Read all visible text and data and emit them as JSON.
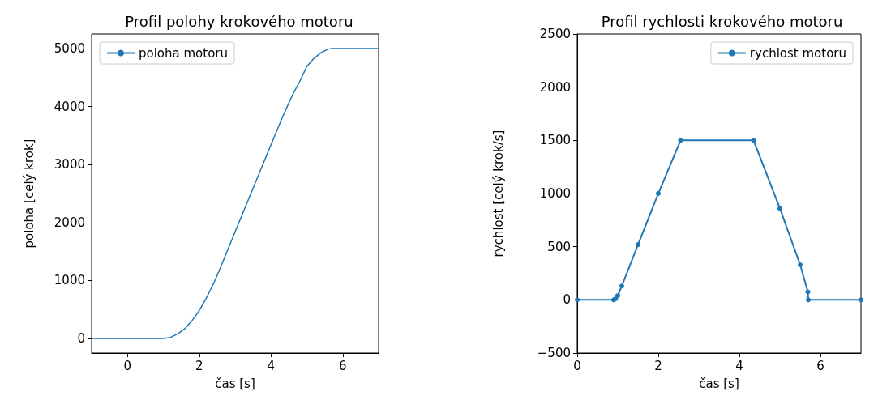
{
  "chart_data": [
    {
      "type": "line",
      "title": "Profil polohy krokového motoru",
      "xlabel": "čas [s]",
      "ylabel": "poloha [celý krok]",
      "xlim": [
        -1,
        7
      ],
      "xticks": [
        0,
        2,
        4,
        6
      ],
      "ylim": [
        -250,
        5250
      ],
      "yticks": [
        0,
        1000,
        2000,
        3000,
        4000,
        5000
      ],
      "grid": false,
      "legend": "top left",
      "line_style": "solid",
      "series": [
        {
          "name": "poloha motoru",
          "color": "#1f77b4",
          "x": [
            -1,
            0,
            1,
            1.2,
            1.4,
            1.6,
            1.8,
            2.0,
            2.2,
            2.4,
            2.55,
            3,
            3.5,
            4,
            4.35,
            4.6,
            4.8,
            5.0,
            5.2,
            5.4,
            5.6,
            5.7,
            6,
            7
          ],
          "values": [
            0,
            0,
            0,
            20,
            80,
            170,
            310,
            480,
            700,
            950,
            1160,
            1840,
            2590,
            3340,
            3860,
            4200,
            4430,
            4690,
            4830,
            4930,
            4990,
            5000,
            5000,
            5000
          ]
        }
      ]
    },
    {
      "type": "line",
      "title": "Profil rychlosti krokového motoru",
      "xlabel": "čas [s]",
      "ylabel": "rychlost [celý krok/s]",
      "xlim": [
        0,
        7
      ],
      "xticks": [
        0,
        2,
        4,
        6
      ],
      "ylim": [
        -500,
        2500
      ],
      "yticks": [
        {
          "value": -500,
          "label": "−500"
        },
        0,
        500,
        1000,
        1500,
        2000,
        2500
      ],
      "grid": false,
      "legend": "top right",
      "marker": "circle",
      "line_style": "solid",
      "series": [
        {
          "name": "rychlost motoru",
          "color": "#1f77b4",
          "x": [
            0,
            0.9,
            0.95,
            1.0,
            1.1,
            1.5,
            2.0,
            2.55,
            4.35,
            5.0,
            5.5,
            5.69,
            5.7,
            7
          ],
          "values": [
            0,
            0,
            10,
            40,
            130,
            520,
            1000,
            1500,
            1500,
            860,
            330,
            75,
            0,
            0
          ]
        }
      ]
    }
  ]
}
